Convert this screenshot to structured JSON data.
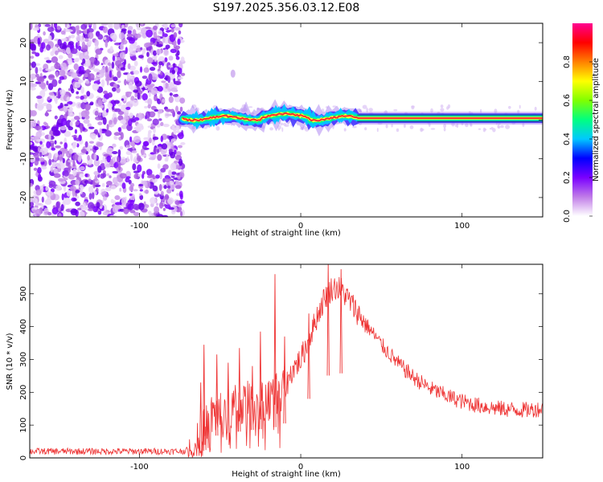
{
  "title": "S197.2025.356.03.12.E08",
  "chart_data": [
    {
      "type": "heatmap",
      "name": "spectrogram",
      "xlabel": "Height of straight line (km)",
      "ylabel": "Frequency (Hz)",
      "xlim": [
        -168,
        150
      ],
      "ylim": [
        -25,
        25
      ],
      "x_ticks": [
        "-100",
        "0",
        "100"
      ],
      "x_tick_values": [
        -100,
        0,
        100
      ],
      "y_ticks": [
        "20",
        "10",
        "0",
        "-10",
        "-20"
      ],
      "y_tick_values": [
        20,
        10,
        0,
        -10,
        -20
      ],
      "noise_region_x": [
        -168,
        -73
      ],
      "signal_start_x": -73,
      "signal_center_freq_hz": 0.5,
      "signal_peak_amplitude": 1.0,
      "faint_spot": {
        "x": -42,
        "freq": 12
      },
      "colorbar": {
        "label": "Normalized spectral amplitude",
        "ticks": [
          "0.0",
          "0.2",
          "0.4",
          "0.6",
          "0.8"
        ],
        "tick_values": [
          0.0,
          0.2,
          0.4,
          0.6,
          0.8
        ],
        "range": [
          0,
          1
        ],
        "colors": [
          "#ffffff",
          "#c07be8",
          "#7a00ff",
          "#0000ff",
          "#00c8ff",
          "#00ff80",
          "#80ff00",
          "#ffff00",
          "#ff8000",
          "#ff0000",
          "#ff0090"
        ]
      }
    },
    {
      "type": "line",
      "name": "snr",
      "xlabel": "Height of straight line (km)",
      "ylabel": "SNR (10 * v/v)",
      "xlim": [
        -168,
        150
      ],
      "ylim": [
        0,
        590
      ],
      "x_ticks": [
        "-100",
        "0",
        "100"
      ],
      "x_tick_values": [
        -100,
        0,
        100
      ],
      "y_ticks": [
        "0",
        "100",
        "200",
        "300",
        "400",
        "500"
      ],
      "y_tick_values": [
        0,
        100,
        200,
        300,
        400,
        500
      ],
      "color": "#ee3333",
      "series_envelope": {
        "x": [
          -168,
          -75,
          -67,
          -60,
          -55,
          -45,
          -35,
          -25,
          -18,
          -10,
          -5,
          0,
          5,
          10,
          15,
          20,
          25,
          30,
          40,
          50,
          60,
          70,
          80,
          90,
          100,
          110,
          120,
          130,
          140,
          150
        ],
        "y": [
          20,
          20,
          25,
          80,
          130,
          150,
          165,
          175,
          180,
          210,
          270,
          300,
          360,
          430,
          490,
          520,
          515,
          480,
          410,
          345,
          290,
          245,
          212,
          190,
          172,
          160,
          152,
          147,
          146,
          150
        ]
      },
      "spikes": [
        {
          "x": -62,
          "y": 230
        },
        {
          "x": -60,
          "y": 345
        },
        {
          "x": -52,
          "y": 315
        },
        {
          "x": -45,
          "y": 290
        },
        {
          "x": -38,
          "y": 335
        },
        {
          "x": -30,
          "y": 280
        },
        {
          "x": -25,
          "y": 385
        },
        {
          "x": -16,
          "y": 560
        },
        {
          "x": -10,
          "y": 370
        },
        {
          "x": 5,
          "y": 440
        },
        {
          "x": 17,
          "y": 590
        },
        {
          "x": 25,
          "y": 575
        }
      ]
    }
  ]
}
